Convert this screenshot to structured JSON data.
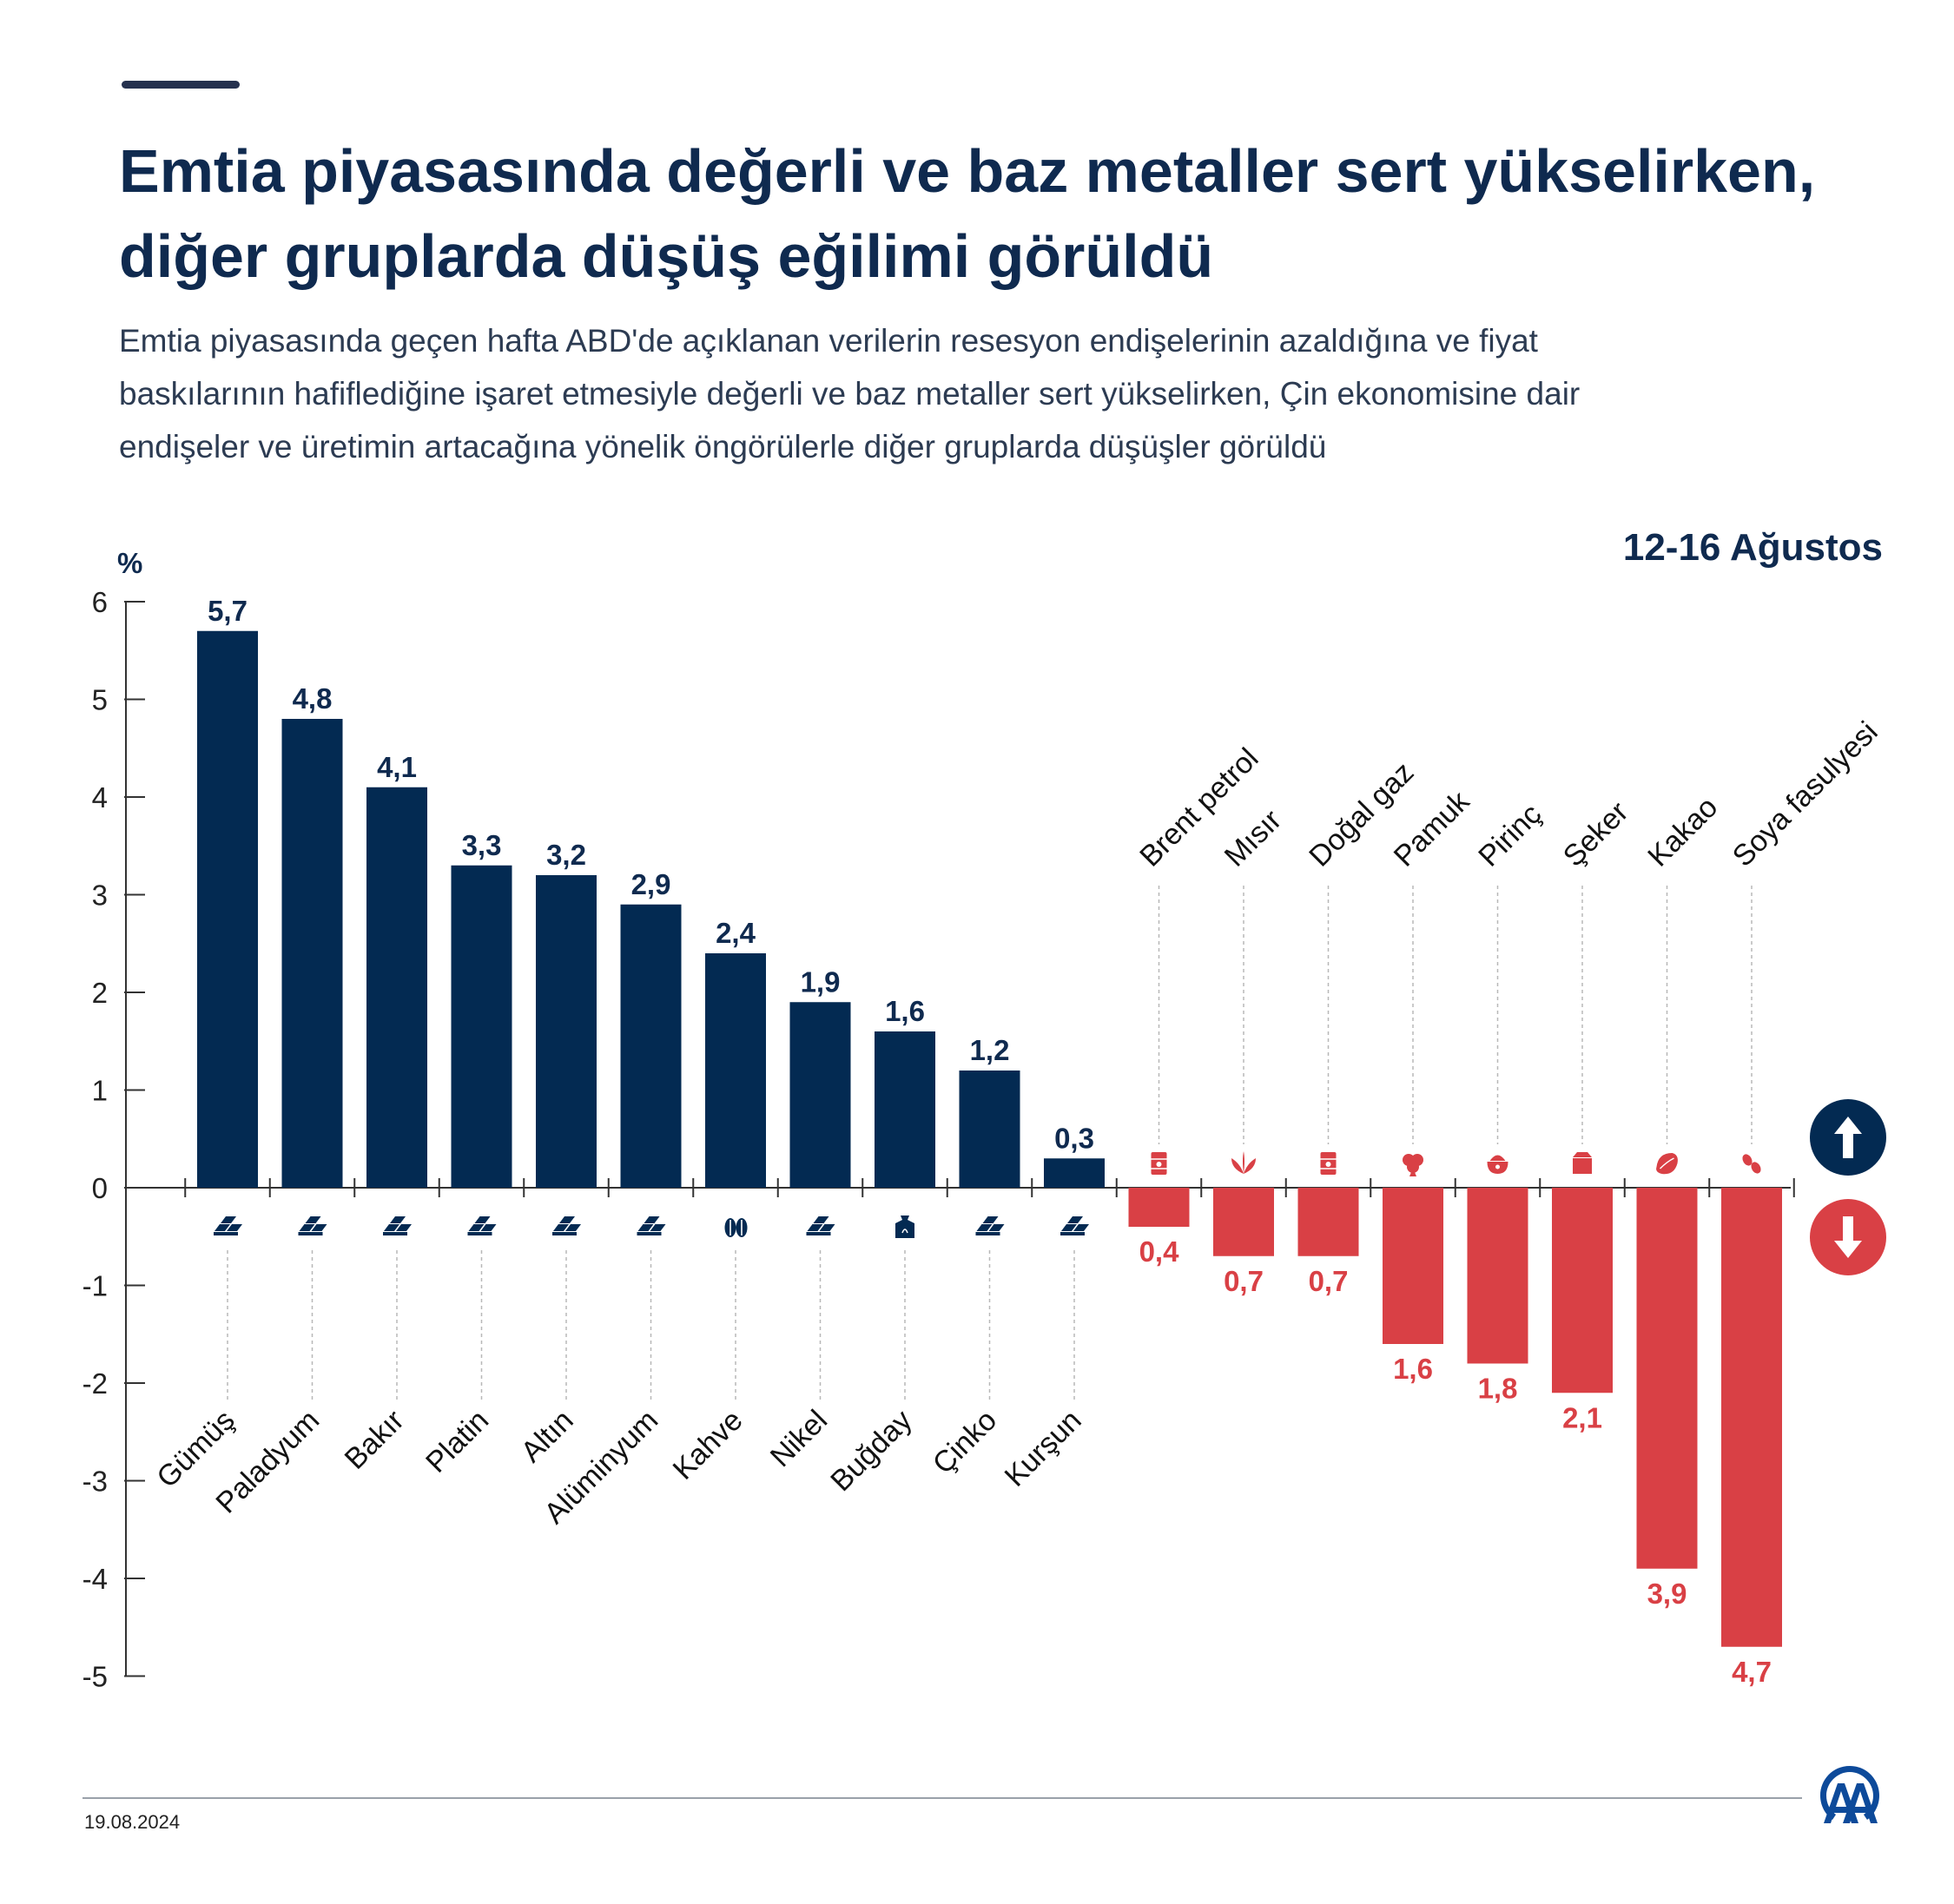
{
  "header": {
    "title_lines": [
      "Emtia piyasasında değerli ve baz metaller sert yükselirken,",
      "diğer gruplarda düşüş eğilimi görüldü"
    ],
    "subtitle_lines": [
      "Emtia piyasasında geçen hafta ABD'de açıklanan verilerin resesyon endişelerinin azaldığına ve fiyat",
      "baskılarının hafiflediğine işaret etmesiyle değerli ve baz metaller sert yükselirken, Çin ekonomisine dair",
      "endişeler ve üretimin artacağına yönelik öngörülerle diğer gruplarda düşüşler görüldü"
    ]
  },
  "chart_data": {
    "type": "bar",
    "period": "12-16 Ağustos",
    "ylabel": "%",
    "ylim": [
      -5,
      6
    ],
    "yticks": [
      6,
      5,
      4,
      3,
      2,
      1,
      0,
      -1,
      -2,
      -3,
      -4,
      -5
    ],
    "grid": false,
    "categories": [
      "Gümüş",
      "Paladyum",
      "Bakır",
      "Platin",
      "Altın",
      "Alüminyum",
      "Kahve",
      "Nikel",
      "Buğday",
      "Çinko",
      "Kurşun",
      "Brent petrol",
      "Mısır",
      "Doğal gaz",
      "Pamuk",
      "Pirinç",
      "Şeker",
      "Kakao",
      "Soya fasulyesi"
    ],
    "values": [
      5.7,
      4.8,
      4.1,
      3.3,
      3.2,
      2.9,
      2.4,
      1.9,
      1.6,
      1.2,
      0.3,
      -0.4,
      -0.7,
      -0.7,
      -1.6,
      -1.8,
      -2.1,
      -3.9,
      -4.7
    ],
    "value_labels": [
      "5,7",
      "4,8",
      "4,1",
      "3,3",
      "3,2",
      "2,9",
      "2,4",
      "1,9",
      "1,6",
      "1,2",
      "0,3",
      "0,4",
      "0,7",
      "0,7",
      "1,6",
      "1,8",
      "2,1",
      "3,9",
      "4,7"
    ],
    "icons": [
      "metal-bars-icon",
      "metal-bars-icon",
      "metal-bars-icon",
      "metal-bars-icon",
      "metal-bars-icon",
      "metal-bars-icon",
      "coffee-beans-icon",
      "metal-bars-icon",
      "grain-sack-icon",
      "metal-bars-icon",
      "metal-bars-icon",
      "oil-barrel-icon",
      "corn-leaves-icon",
      "gas-barrel-icon",
      "cotton-icon",
      "rice-bowl-icon",
      "sugar-box-icon",
      "cocoa-icon",
      "soybean-icon"
    ],
    "colors": {
      "positive": "#032a52",
      "negative": "#d94045",
      "axis": "#333333",
      "text": "#0f2a4f"
    },
    "legend_icons": [
      "up-arrow-icon",
      "down-arrow-icon"
    ]
  },
  "footer": {
    "date": "19.08.2024",
    "logo": "aa-logo-icon"
  }
}
